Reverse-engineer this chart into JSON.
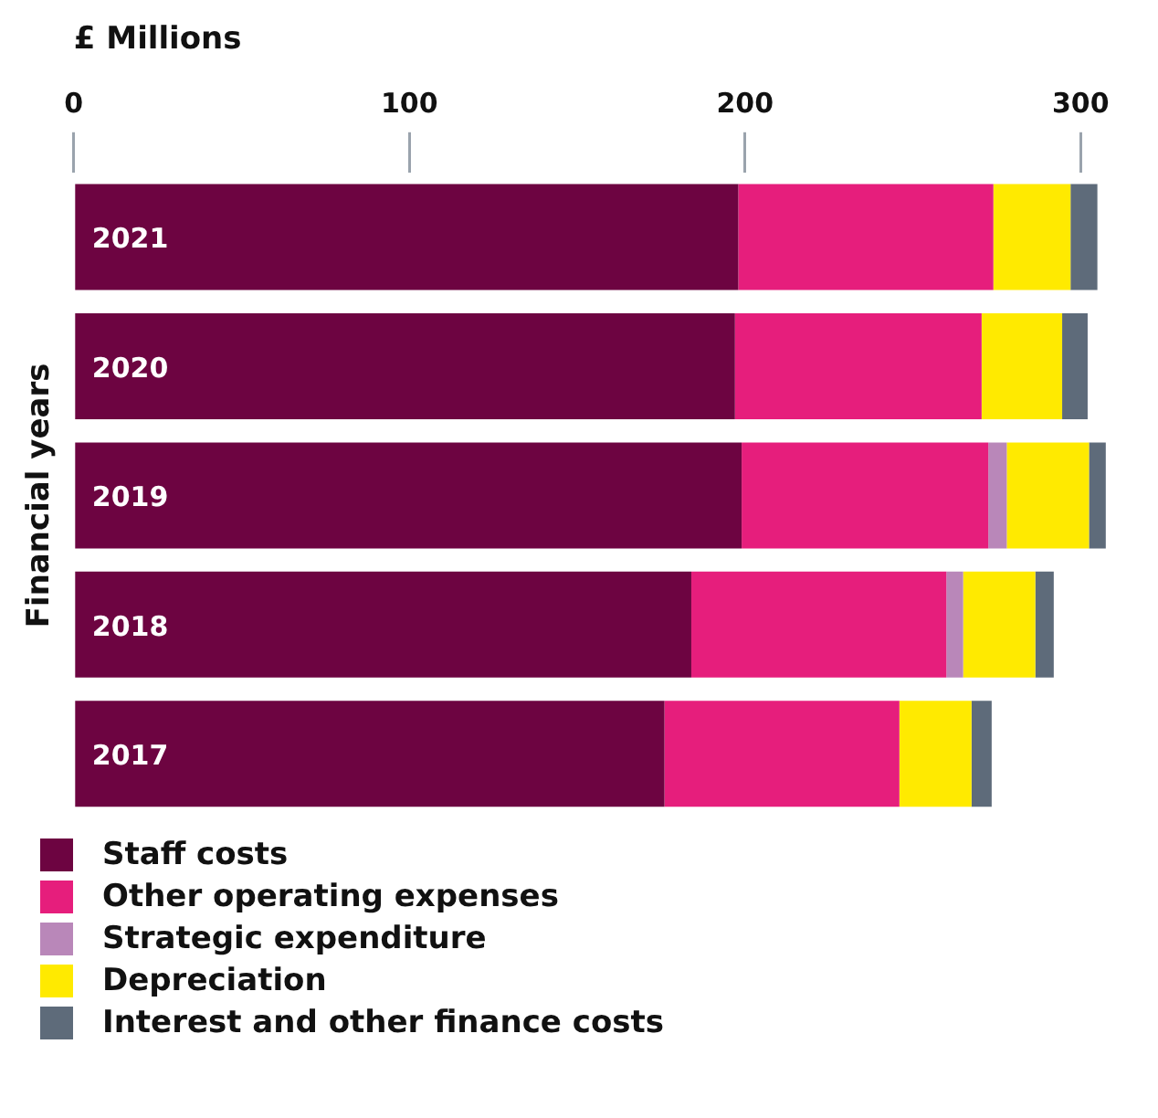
{
  "chart_data": {
    "type": "bar",
    "orientation": "horizontal",
    "stacked": true,
    "xlabel": "£ Millions",
    "ylabel": "Financial years",
    "categories": [
      "2021",
      "2020",
      "2019",
      "2018",
      "2017"
    ],
    "series": [
      {
        "name": "Staff costs",
        "color": "#6d0441",
        "values": [
          198,
          197,
          199,
          184,
          176
        ]
      },
      {
        "name": "Other operating expenses",
        "color": "#e61e7c",
        "values": [
          76,
          73.5,
          73.5,
          76,
          70
        ]
      },
      {
        "name": "Strategic expenditure",
        "color": "#b987b9",
        "values": [
          null,
          null,
          5.5,
          5,
          null
        ]
      },
      {
        "name": "Depreciation",
        "color": "#ffea00",
        "values": [
          23,
          24,
          24.5,
          21.5,
          21.5
        ]
      },
      {
        "name": "Interest and other finance costs",
        "color": "#5e6b7a",
        "values": [
          8,
          7.6,
          5,
          5.5,
          6
        ]
      }
    ],
    "xlim": [
      0,
      310
    ],
    "xticks": [
      0,
      100,
      200,
      300
    ],
    "grid": false,
    "legend": "bottom"
  }
}
